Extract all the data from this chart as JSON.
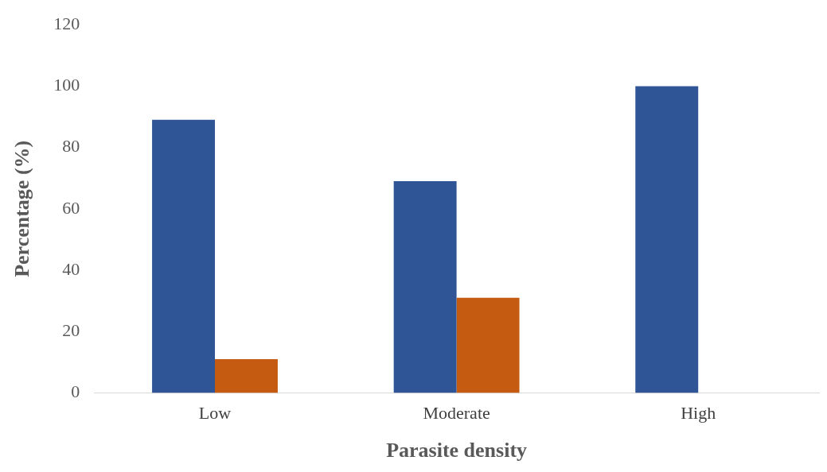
{
  "chart_data": {
    "type": "bar",
    "xlabel": "Parasite density",
    "ylabel": "Percentage (%)",
    "categories": [
      "Low",
      "Moderate",
      "High"
    ],
    "series": [
      {
        "color": "#2f5597",
        "values": [
          89,
          69,
          100
        ]
      },
      {
        "color": "#c55a11",
        "values": [
          11,
          31,
          0
        ]
      }
    ],
    "ylim": [
      0,
      120
    ],
    "yticks": [
      0,
      20,
      40,
      60,
      80,
      100,
      120
    ],
    "grid": false,
    "legend": false
  }
}
